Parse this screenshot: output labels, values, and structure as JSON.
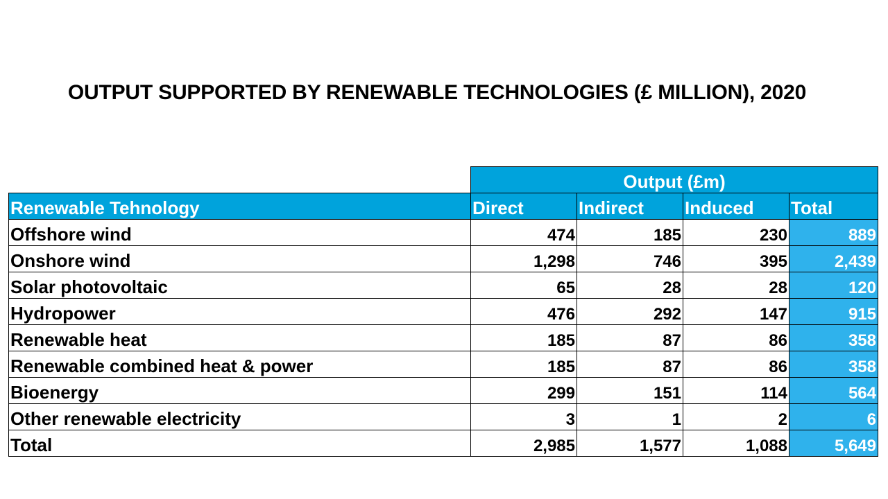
{
  "title": "OUTPUT SUPPORTED BY RENEWABLE TECHNOLOGIES (£ MILLION), 2020",
  "table": {
    "group_header": "Output (£m)",
    "columns": [
      "Renewable Tehnology",
      "Direct",
      "Indirect",
      "Induced",
      "Total"
    ],
    "rows": [
      [
        "Offshore wind",
        "474",
        "185",
        "230",
        "889"
      ],
      [
        "Onshore wind",
        "1,298",
        "746",
        "395",
        "2,439"
      ],
      [
        "Solar photovoltaic",
        "65",
        "28",
        "28",
        "120"
      ],
      [
        "Hydropower",
        "476",
        "292",
        "147",
        "915"
      ],
      [
        "Renewable heat",
        "185",
        "87",
        "86",
        "358"
      ],
      [
        "Renewable combined heat & power",
        "185",
        "87",
        "86",
        "358"
      ],
      [
        "Bioenergy",
        "299",
        "151",
        "114",
        "564"
      ],
      [
        "Other renewable electricity",
        "3",
        "1",
        "2",
        "6"
      ],
      [
        "Total",
        "2,985",
        "1,577",
        "1,088",
        "5,649"
      ]
    ]
  },
  "colors": {
    "header_blue": "#00a3dc",
    "total_column_blue": "#2fb2ec",
    "header_text": "#ffffff"
  }
}
